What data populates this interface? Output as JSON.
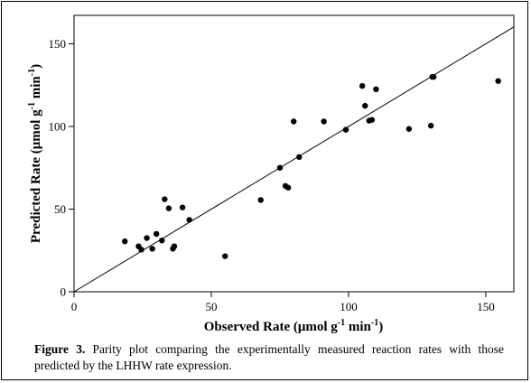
{
  "chart_data": {
    "type": "scatter",
    "xlabel": "Observed Rate (μmol g",
    "xlabel_sup": "-1",
    "xlabel_mid": " min",
    "xlabel_sup2": "-1",
    "xlabel_end": ")",
    "ylabel": "Predicted Rate (μmol g",
    "ylabel_sup": "-1",
    "ylabel_mid": " min",
    "ylabel_sup2": "-1",
    "ylabel_end": ")",
    "xlim": [
      0,
      160
    ],
    "ylim": [
      0,
      160
    ],
    "xticks": [
      0,
      50,
      100,
      150
    ],
    "yticks": [
      0,
      50,
      100,
      150
    ],
    "parity_line": true,
    "grid": false,
    "points": [
      {
        "x": 18.5,
        "y": 30.5
      },
      {
        "x": 23.5,
        "y": 27.5
      },
      {
        "x": 24.5,
        "y": 25.5
      },
      {
        "x": 26.5,
        "y": 32.5
      },
      {
        "x": 28.5,
        "y": 26.0
      },
      {
        "x": 30.0,
        "y": 35.0
      },
      {
        "x": 32.0,
        "y": 31.0
      },
      {
        "x": 33.0,
        "y": 56.0
      },
      {
        "x": 34.5,
        "y": 50.5
      },
      {
        "x": 36.0,
        "y": 26.0
      },
      {
        "x": 36.5,
        "y": 27.5
      },
      {
        "x": 39.5,
        "y": 51.0
      },
      {
        "x": 42.0,
        "y": 43.5
      },
      {
        "x": 55.0,
        "y": 21.5
      },
      {
        "x": 68.0,
        "y": 55.5
      },
      {
        "x": 75.0,
        "y": 75.0
      },
      {
        "x": 77.0,
        "y": 64.0
      },
      {
        "x": 78.0,
        "y": 63.0
      },
      {
        "x": 80.0,
        "y": 103.0
      },
      {
        "x": 82.0,
        "y": 81.5
      },
      {
        "x": 91.0,
        "y": 103.0
      },
      {
        "x": 99.0,
        "y": 98.0
      },
      {
        "x": 105.0,
        "y": 124.5
      },
      {
        "x": 106.0,
        "y": 112.5
      },
      {
        "x": 107.5,
        "y": 103.5
      },
      {
        "x": 108.5,
        "y": 104.0
      },
      {
        "x": 110.0,
        "y": 122.5
      },
      {
        "x": 122.0,
        "y": 98.5
      },
      {
        "x": 130.0,
        "y": 100.5
      },
      {
        "x": 130.5,
        "y": 130.0
      },
      {
        "x": 131.0,
        "y": 130.0
      },
      {
        "x": 154.5,
        "y": 127.5
      }
    ]
  },
  "caption": {
    "label": "Figure 3.",
    "text": " Parity plot comparing the experimentally measured reaction rates with those predicted by the LHHW rate expression."
  }
}
